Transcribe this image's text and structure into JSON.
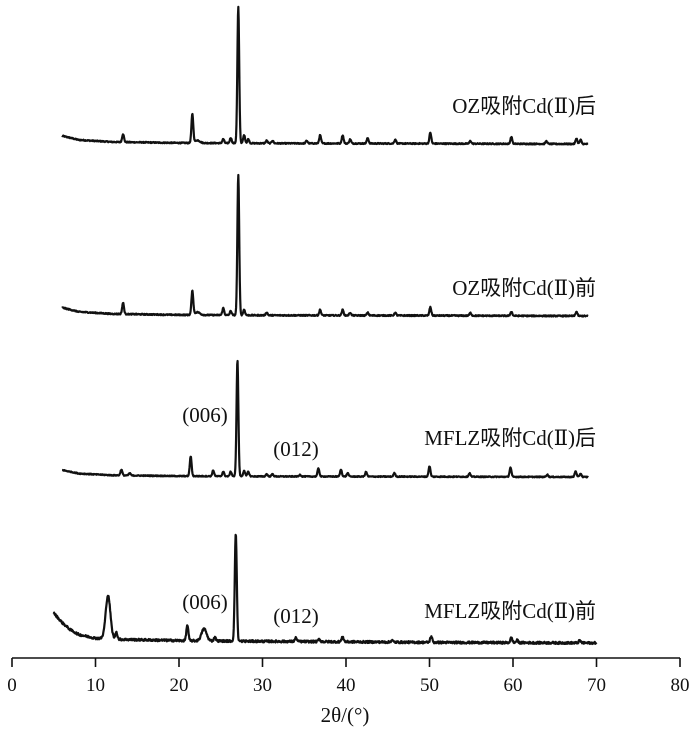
{
  "chart_data": {
    "type": "line",
    "xlabel": "2θ/(°)",
    "xlim": [
      0,
      80
    ],
    "xticks": [
      0,
      10,
      20,
      30,
      40,
      50,
      60,
      70,
      80
    ],
    "yaxis": "none",
    "grid": false,
    "legend": "none",
    "line_color": "#111111",
    "series": [
      {
        "name": "OZ吸附Cd(Ⅱ)后",
        "baseline": [
          [
            6,
            0.06
          ],
          [
            8,
            0.03
          ],
          [
            12,
            0.015
          ],
          [
            20,
            0.008
          ],
          [
            30,
            0.005
          ],
          [
            50,
            0.003
          ],
          [
            69,
            0.0
          ]
        ],
        "peaks": [
          {
            "x": 13.3,
            "h": 0.06
          },
          {
            "x": 21.6,
            "h": 0.21
          },
          {
            "x": 22.2,
            "h": 0.02
          },
          {
            "x": 25.3,
            "h": 0.03
          },
          {
            "x": 26.2,
            "h": 0.04
          },
          {
            "x": 27.1,
            "h": 1.0
          },
          {
            "x": 27.8,
            "h": 0.06
          },
          {
            "x": 28.3,
            "h": 0.03
          },
          {
            "x": 30.5,
            "h": 0.02
          },
          {
            "x": 31.2,
            "h": 0.02
          },
          {
            "x": 35.3,
            "h": 0.02
          },
          {
            "x": 36.9,
            "h": 0.06
          },
          {
            "x": 39.6,
            "h": 0.06
          },
          {
            "x": 40.5,
            "h": 0.03
          },
          {
            "x": 42.6,
            "h": 0.04
          },
          {
            "x": 45.9,
            "h": 0.03
          },
          {
            "x": 50.1,
            "h": 0.08
          },
          {
            "x": 54.9,
            "h": 0.02
          },
          {
            "x": 59.8,
            "h": 0.05
          },
          {
            "x": 64.0,
            "h": 0.02
          },
          {
            "x": 67.6,
            "h": 0.04
          },
          {
            "x": 68.1,
            "h": 0.03
          }
        ]
      },
      {
        "name": "OZ吸附Cd(Ⅱ)前",
        "baseline": [
          [
            6,
            0.06
          ],
          [
            8,
            0.03
          ],
          [
            12,
            0.015
          ],
          [
            20,
            0.008
          ],
          [
            30,
            0.005
          ],
          [
            50,
            0.003
          ],
          [
            69,
            0.0
          ]
        ],
        "peaks": [
          {
            "x": 13.3,
            "h": 0.08
          },
          {
            "x": 21.6,
            "h": 0.17
          },
          {
            "x": 22.2,
            "h": 0.02
          },
          {
            "x": 25.3,
            "h": 0.05
          },
          {
            "x": 26.2,
            "h": 0.03
          },
          {
            "x": 27.1,
            "h": 1.0
          },
          {
            "x": 27.8,
            "h": 0.04
          },
          {
            "x": 30.5,
            "h": 0.02
          },
          {
            "x": 36.9,
            "h": 0.04
          },
          {
            "x": 39.6,
            "h": 0.04
          },
          {
            "x": 40.5,
            "h": 0.02
          },
          {
            "x": 42.6,
            "h": 0.02
          },
          {
            "x": 45.9,
            "h": 0.02
          },
          {
            "x": 50.1,
            "h": 0.06
          },
          {
            "x": 54.9,
            "h": 0.02
          },
          {
            "x": 59.8,
            "h": 0.03
          },
          {
            "x": 67.6,
            "h": 0.03
          }
        ]
      },
      {
        "name": "MFLZ吸附Cd(Ⅱ)后",
        "baseline": [
          [
            6,
            0.06
          ],
          [
            8,
            0.03
          ],
          [
            12,
            0.015
          ],
          [
            20,
            0.008
          ],
          [
            30,
            0.005
          ],
          [
            50,
            0.003
          ],
          [
            69,
            0.0
          ]
        ],
        "peaks": [
          {
            "x": 13.1,
            "h": 0.05
          },
          {
            "x": 14.1,
            "h": 0.02
          },
          {
            "x": 21.4,
            "h": 0.17
          },
          {
            "x": 24.1,
            "h": 0.05
          },
          {
            "x": 25.3,
            "h": 0.04
          },
          {
            "x": 26.2,
            "h": 0.04
          },
          {
            "x": 27.0,
            "h": 1.0
          },
          {
            "x": 27.8,
            "h": 0.05
          },
          {
            "x": 28.3,
            "h": 0.04
          },
          {
            "x": 30.5,
            "h": 0.02
          },
          {
            "x": 31.2,
            "h": 0.02
          },
          {
            "x": 34.5,
            "h": 0.015
          },
          {
            "x": 36.7,
            "h": 0.07
          },
          {
            "x": 39.4,
            "h": 0.06
          },
          {
            "x": 40.2,
            "h": 0.03
          },
          {
            "x": 42.4,
            "h": 0.04
          },
          {
            "x": 45.8,
            "h": 0.03
          },
          {
            "x": 50.0,
            "h": 0.09
          },
          {
            "x": 54.8,
            "h": 0.03
          },
          {
            "x": 59.7,
            "h": 0.08
          },
          {
            "x": 64.1,
            "h": 0.02
          },
          {
            "x": 67.5,
            "h": 0.05
          },
          {
            "x": 68.1,
            "h": 0.03
          }
        ]
      },
      {
        "name": "MFLZ吸附Cd(Ⅱ)前",
        "baseline": [
          [
            5,
            0.25
          ],
          [
            6,
            0.17
          ],
          [
            7,
            0.11
          ],
          [
            8,
            0.07
          ],
          [
            10,
            0.04
          ],
          [
            13,
            0.03
          ],
          [
            20,
            0.02
          ],
          [
            28,
            0.015
          ],
          [
            40,
            0.01
          ],
          [
            50,
            0.005
          ],
          [
            70,
            0.0
          ]
        ],
        "peaks": [
          {
            "x": 11.5,
            "h": 0.36
          },
          {
            "x": 12.5,
            "h": 0.06
          },
          {
            "x": 21.0,
            "h": 0.13
          },
          {
            "x": 23.0,
            "h": 0.1
          },
          {
            "x": 24.3,
            "h": 0.03
          },
          {
            "x": 26.8,
            "h": 0.9
          },
          {
            "x": 34.0,
            "h": 0.03
          },
          {
            "x": 36.8,
            "h": 0.02
          },
          {
            "x": 39.6,
            "h": 0.04
          },
          {
            "x": 45.5,
            "h": 0.015
          },
          {
            "x": 50.2,
            "h": 0.05
          },
          {
            "x": 59.8,
            "h": 0.04
          },
          {
            "x": 60.5,
            "h": 0.02
          },
          {
            "x": 68.0,
            "h": 0.02
          }
        ]
      }
    ],
    "annotations": [
      {
        "text": "(006)",
        "series": 2
      },
      {
        "text": "(012)",
        "series": 2
      },
      {
        "text": "(006)",
        "series": 3
      },
      {
        "text": "(012)",
        "series": 3
      }
    ]
  }
}
